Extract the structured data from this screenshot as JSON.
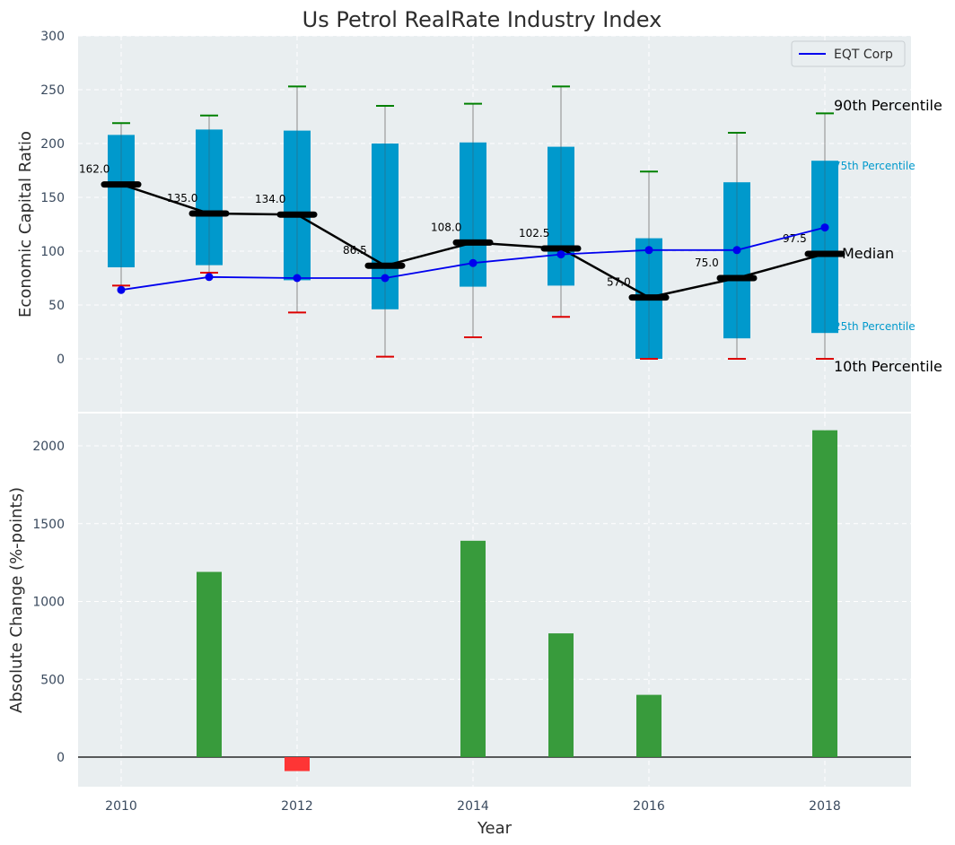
{
  "chart_data": [
    {
      "type": "box",
      "title": "Us Petrol RealRate Industry Index",
      "ylabel": "Economic Capital Ratio",
      "xlabel": "",
      "ylim": [
        -50,
        300
      ],
      "yticks": [
        0,
        50,
        100,
        150,
        200,
        250,
        300
      ],
      "grid": true,
      "legend": {
        "position": "top-right",
        "entries": [
          "EQT Corp"
        ]
      },
      "series": [
        {
          "name": "10th Percentile",
          "values": [
            68,
            80,
            43,
            2,
            20,
            39,
            0,
            0,
            0
          ]
        },
        {
          "name": "25th Percentile",
          "values": [
            85,
            87,
            73,
            46,
            67,
            68,
            0,
            19,
            24
          ]
        },
        {
          "name": "Median",
          "values": [
            162.0,
            135.0,
            134.0,
            86.5,
            108.0,
            102.5,
            57.0,
            75.0,
            97.5
          ]
        },
        {
          "name": "75th Percentile",
          "values": [
            208,
            213,
            212,
            200,
            201,
            197,
            112,
            164,
            184
          ]
        },
        {
          "name": "90th Percentile",
          "values": [
            219,
            226,
            253,
            235,
            237,
            253,
            174,
            210,
            228
          ]
        },
        {
          "name": "EQT Corp",
          "values": [
            64,
            76,
            75,
            75,
            89,
            97,
            101,
            101,
            122
          ]
        }
      ],
      "x": [
        2010,
        2011,
        2012,
        2013,
        2014,
        2015,
        2016,
        2017,
        2018
      ],
      "median_labels": [
        "162.0",
        "135.0",
        "134.0",
        "86.5",
        "108.0",
        "102.5",
        "57.0",
        "75.0",
        "97.5"
      ],
      "annotations": {
        "p90": "90th Percentile",
        "p75": "75th Percentile",
        "median": "Median",
        "p25": "25th Percentile",
        "p10": "10th Percentile"
      },
      "colors": {
        "box": "#0099cc",
        "median": "#000000",
        "eqt": "#0000ee",
        "whisker_high": "#008000",
        "whisker_low": "#dd0000",
        "background": "#e9eef0"
      }
    },
    {
      "type": "bar",
      "ylabel": "Absolute Change (%-points)",
      "xlabel": "Year",
      "ylim": [
        -200,
        2200
      ],
      "yticks": [
        0,
        500,
        1000,
        1500,
        2000
      ],
      "xticks": [
        2010,
        2012,
        2014,
        2016,
        2018
      ],
      "xlim": [
        2009.5,
        2019
      ],
      "grid": true,
      "x": [
        2011,
        2012,
        2014,
        2015,
        2016,
        2018
      ],
      "values": [
        1190,
        -90,
        1390,
        795,
        400,
        2100
      ],
      "colors": {
        "positive": "#2e9632",
        "negative": "#ff2a2a"
      }
    }
  ]
}
